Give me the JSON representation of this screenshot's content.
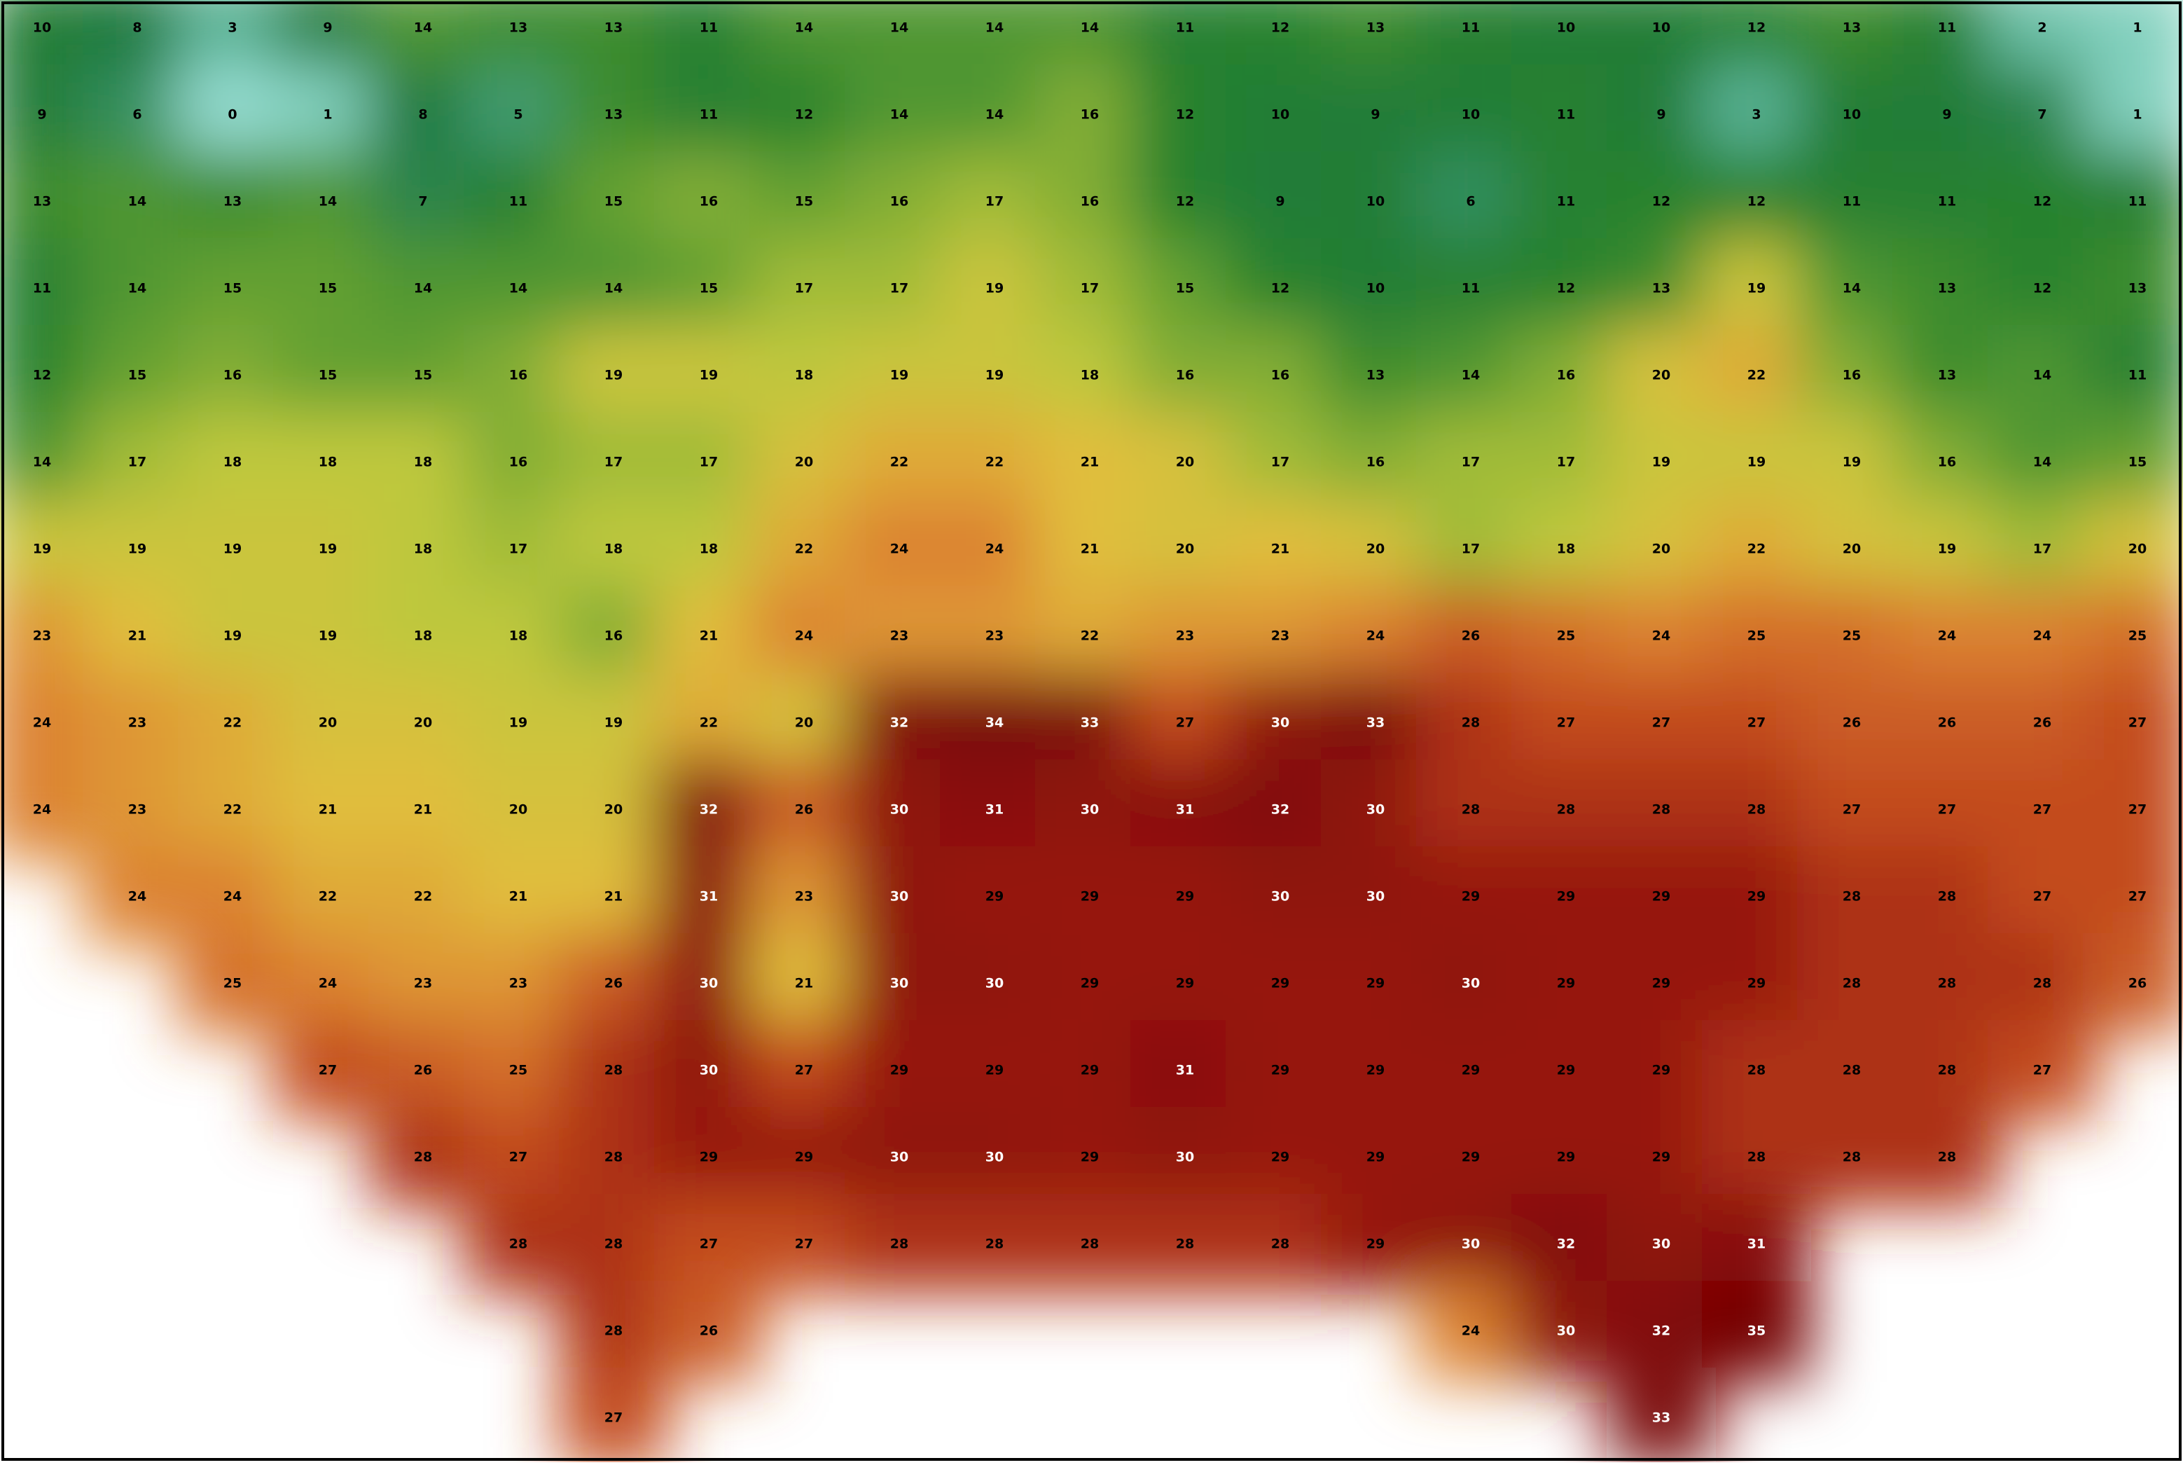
{
  "map": {
    "rows": [
      [
        10,
        8,
        3,
        9,
        14,
        13,
        13,
        11,
        14,
        14,
        14,
        14,
        11,
        12,
        13,
        11,
        10,
        10,
        12,
        13,
        11,
        2,
        1
      ],
      [
        9,
        6,
        0,
        1,
        8,
        5,
        13,
        11,
        12,
        14,
        14,
        16,
        12,
        10,
        9,
        10,
        11,
        9,
        3,
        10,
        9,
        7,
        1
      ],
      [
        13,
        14,
        13,
        14,
        7,
        11,
        15,
        16,
        15,
        16,
        17,
        16,
        12,
        9,
        10,
        6,
        11,
        12,
        12,
        11,
        11,
        12,
        11
      ],
      [
        11,
        14,
        15,
        15,
        14,
        14,
        14,
        15,
        17,
        17,
        19,
        17,
        15,
        12,
        10,
        11,
        12,
        13,
        19,
        14,
        13,
        12,
        13
      ],
      [
        12,
        15,
        16,
        15,
        15,
        16,
        19,
        19,
        18,
        19,
        19,
        18,
        16,
        16,
        13,
        14,
        16,
        20,
        22,
        16,
        13,
        14,
        11
      ],
      [
        14,
        17,
        18,
        18,
        18,
        16,
        17,
        17,
        20,
        22,
        22,
        21,
        20,
        17,
        16,
        17,
        17,
        19,
        19,
        19,
        16,
        14,
        15
      ],
      [
        19,
        19,
        19,
        19,
        18,
        17,
        18,
        18,
        22,
        24,
        24,
        21,
        20,
        21,
        20,
        17,
        18,
        20,
        22,
        20,
        19,
        17,
        20
      ],
      [
        23,
        21,
        19,
        19,
        18,
        18,
        16,
        21,
        24,
        23,
        23,
        22,
        23,
        23,
        24,
        26,
        25,
        24,
        25,
        25,
        24,
        24,
        25
      ],
      [
        24,
        23,
        22,
        20,
        20,
        19,
        19,
        22,
        20,
        32,
        34,
        33,
        27,
        30,
        33,
        28,
        27,
        27,
        27,
        26,
        26,
        26,
        27
      ],
      [
        24,
        23,
        22,
        21,
        21,
        20,
        20,
        32,
        26,
        30,
        31,
        30,
        31,
        32,
        30,
        28,
        28,
        28,
        28,
        27,
        27,
        27,
        27
      ],
      [
        null,
        24,
        24,
        22,
        22,
        21,
        21,
        31,
        23,
        30,
        29,
        29,
        29,
        30,
        30,
        29,
        29,
        29,
        29,
        28,
        28,
        27,
        27
      ],
      [
        null,
        null,
        25,
        24,
        23,
        23,
        26,
        30,
        21,
        30,
        30,
        29,
        29,
        29,
        29,
        30,
        29,
        29,
        29,
        28,
        28,
        28,
        26
      ],
      [
        null,
        null,
        null,
        27,
        26,
        25,
        28,
        30,
        27,
        29,
        29,
        29,
        31,
        29,
        29,
        29,
        29,
        29,
        28,
        28,
        28,
        27,
        null
      ],
      [
        null,
        null,
        null,
        null,
        28,
        27,
        28,
        29,
        29,
        30,
        30,
        29,
        30,
        29,
        29,
        29,
        29,
        29,
        28,
        28,
        28,
        null,
        null
      ],
      [
        null,
        null,
        null,
        null,
        null,
        28,
        28,
        27,
        27,
        28,
        28,
        28,
        28,
        28,
        29,
        30,
        32,
        30,
        31,
        null,
        null,
        null,
        null
      ],
      [
        null,
        null,
        null,
        null,
        null,
        null,
        28,
        26,
        null,
        null,
        null,
        null,
        null,
        null,
        null,
        24,
        30,
        32,
        35,
        null,
        null,
        null,
        null
      ],
      [
        null,
        null,
        null,
        null,
        null,
        null,
        27,
        null,
        null,
        null,
        null,
        null,
        null,
        null,
        null,
        null,
        null,
        33,
        null,
        null,
        null,
        null,
        null
      ]
    ]
  }
}
